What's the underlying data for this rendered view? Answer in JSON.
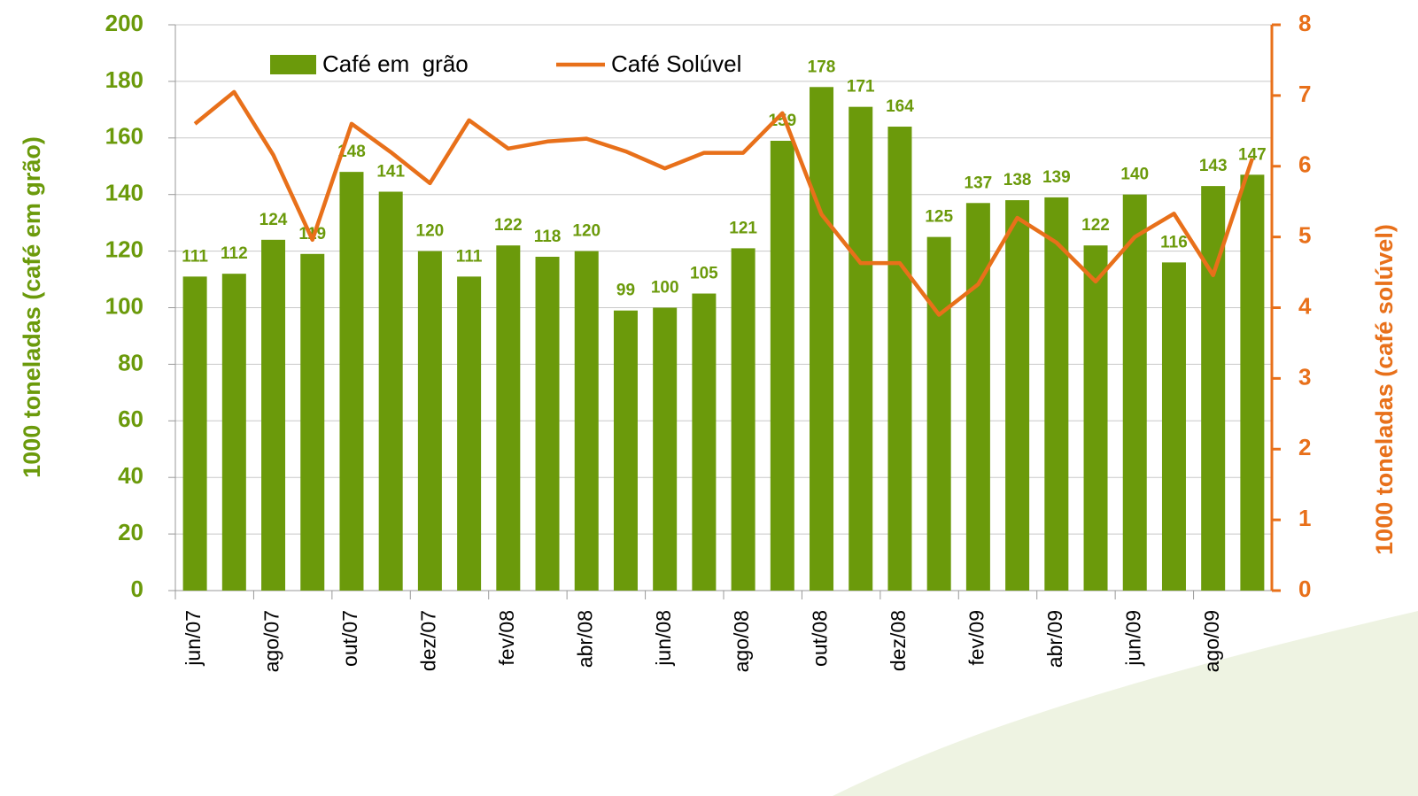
{
  "chart_data": {
    "type": "bar-line",
    "y_label": "1000 toneladas (café em grão)",
    "y2_label": "1000 toneladas (café solúvel)",
    "categories": [
      "jun/07",
      null,
      "ago/07",
      null,
      "out/07",
      null,
      "dez/07",
      null,
      "fev/08",
      null,
      "abr/08",
      null,
      "jun/08",
      null,
      "ago/08",
      null,
      "out/08",
      null,
      "dez/08",
      null,
      "fev/09",
      null,
      "abr/09",
      null,
      "jun/09",
      null,
      "ago/09",
      null
    ],
    "series": [
      {
        "name": "Café em  grão",
        "type": "bar",
        "color": "#6b9a0b",
        "values": [
          111,
          112,
          124,
          119,
          148,
          141,
          120,
          111,
          122,
          118,
          120,
          99,
          100,
          105,
          121,
          159,
          178,
          171,
          164,
          125,
          137,
          138,
          139,
          122,
          140,
          116,
          143,
          147
        ]
      },
      {
        "name": "Café Solúvel",
        "type": "line",
        "axis": "y2",
        "color": "#e8701a",
        "values": [
          6.6,
          7.05,
          6.16,
          4.96,
          6.6,
          6.2,
          5.76,
          6.65,
          6.25,
          6.35,
          6.39,
          6.21,
          5.97,
          6.19,
          6.19,
          6.75,
          5.32,
          4.63,
          4.63,
          3.9,
          4.33,
          5.27,
          4.92,
          4.37,
          5.0,
          5.33,
          4.46,
          6.11
        ]
      }
    ],
    "ylim": [
      0,
      200
    ],
    "yticks": [
      0,
      20,
      40,
      60,
      80,
      100,
      120,
      140,
      160,
      180,
      200
    ],
    "y2lim": [
      0,
      8
    ],
    "y2ticks": [
      0,
      1,
      2,
      3,
      4,
      5,
      6,
      7,
      8
    ],
    "grid": true,
    "legend": "top"
  }
}
